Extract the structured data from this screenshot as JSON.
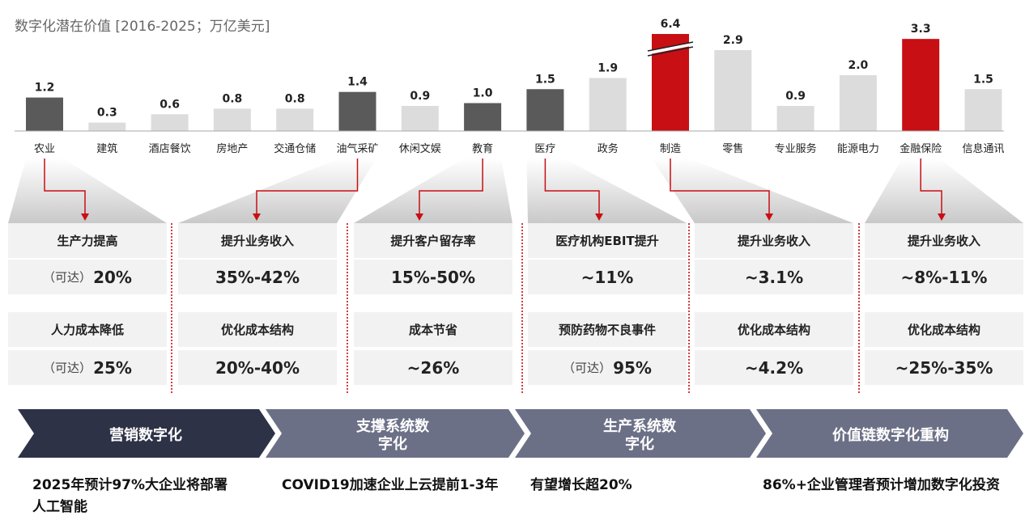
{
  "title": "数字化潜在价值 [2016-2025；万亿美元]",
  "chart_data": {
    "type": "bar",
    "title": "数字化潜在价值 [2016-2025；万亿美元]",
    "categories": [
      "农业",
      "建筑",
      "酒店餐饮",
      "房地产",
      "交通仓储",
      "油气采矿",
      "休闲文娱",
      "教育",
      "医疗",
      "政务",
      "制造",
      "零售",
      "专业服务",
      "能源电力",
      "金融保险",
      "信息通讯"
    ],
    "values": [
      1.2,
      0.3,
      0.6,
      0.8,
      0.8,
      1.4,
      0.9,
      1.0,
      1.5,
      1.9,
      6.4,
      2.9,
      0.9,
      2.0,
      3.3,
      1.5
    ],
    "value_labels": [
      "1.2",
      "0.3",
      "0.6",
      "0.8",
      "0.8",
      "1.4",
      "0.9",
      "1.0",
      "1.5",
      "1.9",
      "6.4",
      "2.9",
      "0.9",
      "2.0",
      "3.3",
      "1.5"
    ],
    "bar_style": [
      "dark",
      "light",
      "light",
      "light",
      "light",
      "dark",
      "light",
      "dark",
      "dark",
      "light",
      "red",
      "light",
      "light",
      "light",
      "red",
      "light"
    ],
    "axis_break_on": "制造",
    "colors": {
      "dark": "#5a5a5a",
      "light": "#dcdcdc",
      "red": "#c80f14"
    }
  },
  "callouts": [
    {
      "source": "农业",
      "items": [
        {
          "label": "生产力提高",
          "prefix": "（可达）",
          "value": "20%"
        },
        {
          "label": "人力成本降低",
          "prefix": "（可达）",
          "value": "25%"
        }
      ]
    },
    {
      "source": "油气采矿",
      "items": [
        {
          "label": "提升业务收入",
          "prefix": "",
          "value": "35%-42%"
        },
        {
          "label": "优化成本结构",
          "prefix": "",
          "value": "20%-40%"
        }
      ]
    },
    {
      "source": "教育",
      "items": [
        {
          "label": "提升客户留存率",
          "prefix": "",
          "value": "15%-50%"
        },
        {
          "label": "成本节省",
          "prefix": "",
          "value": "~26%"
        }
      ]
    },
    {
      "source": "医疗",
      "items": [
        {
          "label": "医疗机构EBIT提升",
          "prefix": "",
          "value": "~11%"
        },
        {
          "label": "预防药物不良事件",
          "prefix": "（可达）",
          "value": "95%"
        }
      ]
    },
    {
      "source": "制造",
      "items": [
        {
          "label": "提升业务收入",
          "prefix": "",
          "value": "~3.1%"
        },
        {
          "label": "优化成本结构",
          "prefix": "",
          "value": "~4.2%"
        }
      ]
    },
    {
      "source": "金融保险",
      "items": [
        {
          "label": "提升业务收入",
          "prefix": "",
          "value": "~8%-11%"
        },
        {
          "label": "优化成本结构",
          "prefix": "",
          "value": "~25%-35%"
        }
      ]
    }
  ],
  "stages": [
    {
      "label": "营销数字化",
      "note": "2025年预计97%大企业将部署人工智能"
    },
    {
      "label": "支撑系统数字化",
      "note": "COVID19加速企业上云提前1-3年"
    },
    {
      "label": "生产系统数字化",
      "note": "有望增长超20%"
    },
    {
      "label": "价值链数字化重构",
      "note": "86%+企业管理者预计增加数字化投资"
    }
  ],
  "colors": {
    "accent_red": "#c80f14",
    "card_bg": "#f2f2f2",
    "chevron_dark": "#2e3247",
    "chevron_mid": "#6c7087"
  }
}
